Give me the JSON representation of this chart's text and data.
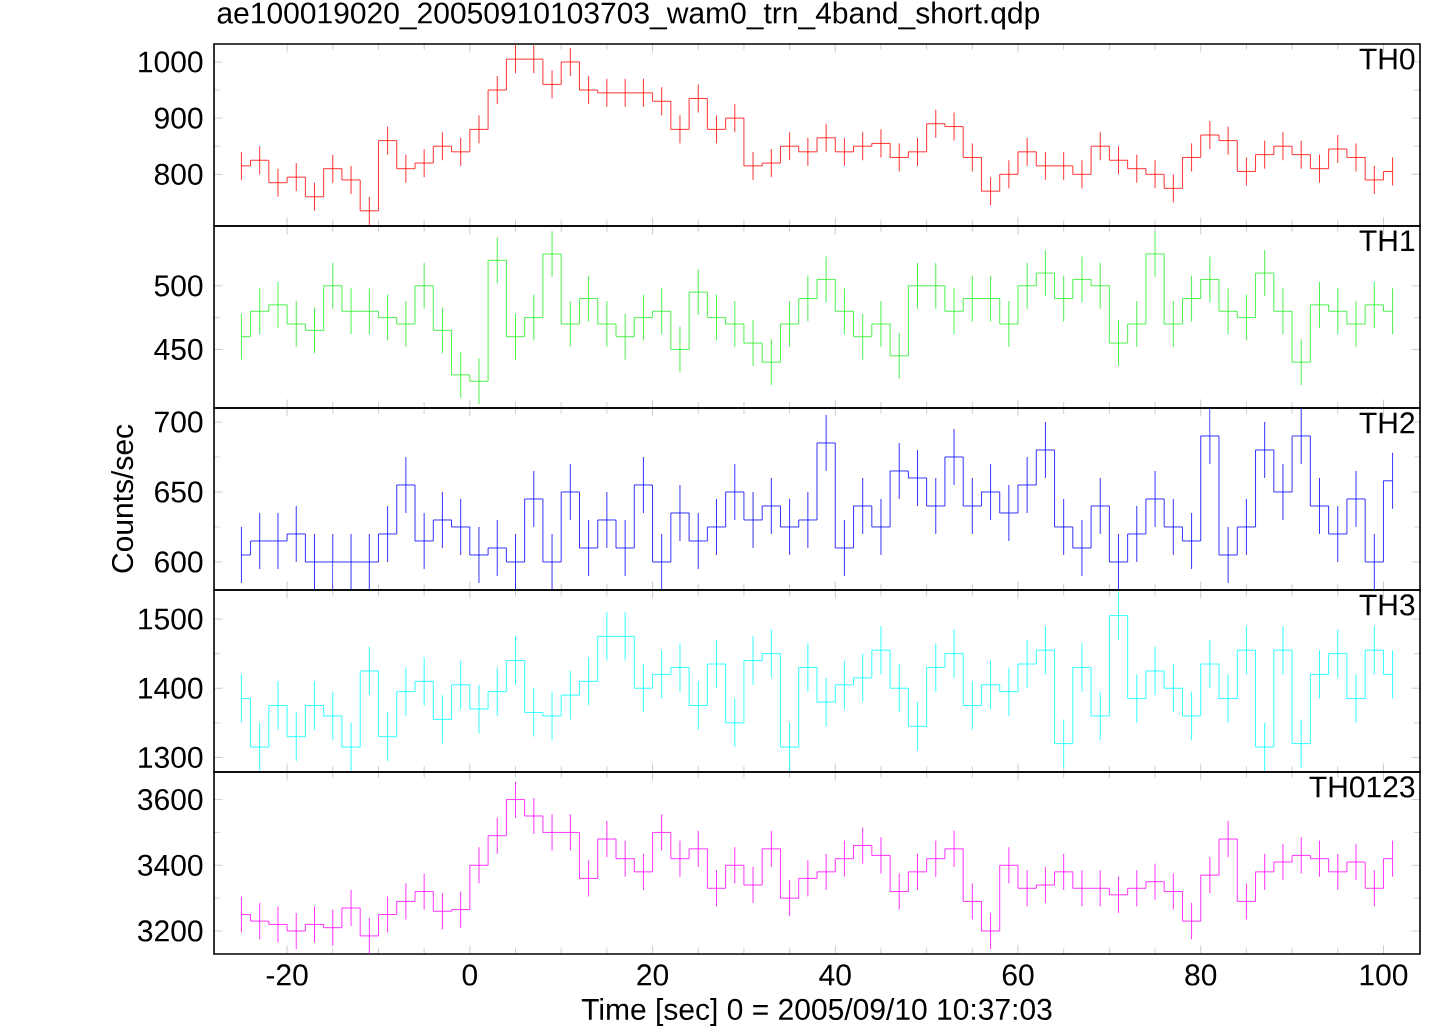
{
  "chart_data": [
    {
      "type": "step",
      "title": "ae100019020_20050910103703_wam0_trn_4band_short.qdp",
      "tick_labels": "y",
      "x": [
        -25,
        -23,
        -21,
        -19,
        -17,
        -15,
        -13,
        -11,
        -9,
        -7,
        -5,
        -3,
        -1,
        1,
        3,
        5,
        7,
        9,
        11,
        13,
        15,
        17,
        19,
        21,
        23,
        25,
        27,
        29,
        31,
        33,
        35,
        37,
        39,
        41,
        43,
        45,
        47,
        49,
        51,
        53,
        55,
        57,
        59,
        61,
        63,
        65,
        67,
        69,
        71,
        73,
        75,
        77,
        79,
        81,
        83,
        85,
        87,
        89,
        91,
        93,
        95,
        97,
        99,
        101
      ],
      "xlim": [
        -28,
        104
      ],
      "xticks": [
        -20,
        0,
        20,
        40,
        60,
        80,
        100
      ],
      "ylim": [
        708,
        1032
      ],
      "yticks": [
        800,
        900,
        1000
      ],
      "series": [
        {
          "name": "TH0",
          "color": "#ff0000",
          "values": [
            815,
            825,
            785,
            795,
            760,
            810,
            790,
            735,
            860,
            810,
            820,
            850,
            840,
            880,
            950,
            1005,
            1005,
            960,
            1000,
            950,
            945,
            945,
            945,
            930,
            880,
            935,
            880,
            900,
            815,
            820,
            850,
            840,
            865,
            840,
            850,
            855,
            830,
            840,
            890,
            885,
            830,
            770,
            800,
            840,
            815,
            815,
            800,
            850,
            825,
            810,
            800,
            775,
            830,
            870,
            860,
            805,
            835,
            850,
            835,
            810,
            845,
            830,
            790,
            805
          ],
          "errors": [
            25,
            25,
            25,
            25,
            25,
            25,
            25,
            25,
            25,
            25,
            25,
            25,
            25,
            25,
            25,
            25,
            25,
            25,
            25,
            25,
            25,
            25,
            25,
            25,
            25,
            25,
            25,
            25,
            25,
            25,
            25,
            25,
            25,
            25,
            25,
            25,
            25,
            25,
            25,
            25,
            25,
            25,
            25,
            25,
            25,
            25,
            25,
            25,
            25,
            25,
            25,
            25,
            25,
            25,
            25,
            25,
            25,
            25,
            25,
            25,
            25,
            25,
            25,
            25
          ]
        }
      ]
    },
    {
      "type": "step",
      "tick_labels": "y",
      "x": [
        -25,
        -23,
        -21,
        -19,
        -17,
        -15,
        -13,
        -11,
        -9,
        -7,
        -5,
        -3,
        -1,
        1,
        3,
        5,
        7,
        9,
        11,
        13,
        15,
        17,
        19,
        21,
        23,
        25,
        27,
        29,
        31,
        33,
        35,
        37,
        39,
        41,
        43,
        45,
        47,
        49,
        51,
        53,
        55,
        57,
        59,
        61,
        63,
        65,
        67,
        69,
        71,
        73,
        75,
        77,
        79,
        81,
        83,
        85,
        87,
        89,
        91,
        93,
        95,
        97,
        99,
        101
      ],
      "xlim": [
        -28,
        104
      ],
      "xticks": [
        -20,
        0,
        20,
        40,
        60,
        80,
        100
      ],
      "ylim": [
        404,
        547
      ],
      "yticks": [
        450,
        500
      ],
      "series": [
        {
          "name": "TH1",
          "color": "#22ee22",
          "values": [
            460,
            480,
            485,
            470,
            465,
            500,
            480,
            480,
            475,
            470,
            500,
            465,
            430,
            425,
            520,
            460,
            475,
            525,
            470,
            490,
            470,
            460,
            475,
            480,
            450,
            495,
            475,
            470,
            455,
            440,
            470,
            490,
            505,
            480,
            460,
            470,
            445,
            500,
            500,
            480,
            490,
            490,
            470,
            500,
            510,
            490,
            505,
            500,
            455,
            470,
            525,
            470,
            490,
            505,
            480,
            475,
            510,
            480,
            440,
            485,
            480,
            470,
            485,
            480
          ],
          "errors": [
            18,
            18,
            18,
            18,
            18,
            18,
            18,
            18,
            18,
            18,
            18,
            18,
            18,
            18,
            18,
            18,
            18,
            18,
            18,
            18,
            18,
            18,
            18,
            18,
            18,
            18,
            18,
            18,
            18,
            18,
            18,
            18,
            18,
            18,
            18,
            18,
            18,
            18,
            18,
            18,
            18,
            18,
            18,
            18,
            18,
            18,
            18,
            18,
            18,
            18,
            18,
            18,
            18,
            18,
            18,
            18,
            18,
            18,
            18,
            18,
            18,
            18,
            18,
            18
          ]
        }
      ]
    },
    {
      "type": "step",
      "ylabel": "Counts/sec",
      "tick_labels": "y",
      "x": [
        -25,
        -23,
        -21,
        -19,
        -17,
        -15,
        -13,
        -11,
        -9,
        -7,
        -5,
        -3,
        -1,
        1,
        3,
        5,
        7,
        9,
        11,
        13,
        15,
        17,
        19,
        21,
        23,
        25,
        27,
        29,
        31,
        33,
        35,
        37,
        39,
        41,
        43,
        45,
        47,
        49,
        51,
        53,
        55,
        57,
        59,
        61,
        63,
        65,
        67,
        69,
        71,
        73,
        75,
        77,
        79,
        81,
        83,
        85,
        87,
        89,
        91,
        93,
        95,
        97,
        99,
        101
      ],
      "xlim": [
        -28,
        104
      ],
      "xticks": [
        -20,
        0,
        20,
        40,
        60,
        80,
        100
      ],
      "ylim": [
        580,
        710
      ],
      "yticks": [
        600,
        650,
        700
      ],
      "series": [
        {
          "name": "TH2",
          "color": "#0000ff",
          "values": [
            605,
            615,
            615,
            620,
            600,
            600,
            600,
            600,
            620,
            655,
            615,
            630,
            625,
            605,
            610,
            600,
            645,
            600,
            650,
            610,
            630,
            610,
            655,
            600,
            635,
            615,
            625,
            650,
            630,
            640,
            625,
            630,
            685,
            610,
            640,
            625,
            665,
            660,
            640,
            675,
            640,
            650,
            635,
            655,
            680,
            625,
            610,
            640,
            600,
            620,
            645,
            625,
            615,
            690,
            605,
            625,
            680,
            650,
            690,
            640,
            620,
            645,
            600,
            658
          ],
          "errors": [
            20,
            20,
            20,
            20,
            20,
            20,
            20,
            20,
            20,
            20,
            20,
            20,
            20,
            20,
            20,
            20,
            20,
            20,
            20,
            20,
            20,
            20,
            20,
            20,
            20,
            20,
            20,
            20,
            20,
            20,
            20,
            20,
            20,
            20,
            20,
            20,
            20,
            20,
            20,
            20,
            20,
            20,
            20,
            20,
            20,
            20,
            20,
            20,
            20,
            20,
            20,
            20,
            20,
            20,
            20,
            20,
            20,
            20,
            20,
            20,
            20,
            20,
            20,
            20
          ]
        }
      ]
    },
    {
      "type": "step",
      "tick_labels": "y",
      "x": [
        -25,
        -23,
        -21,
        -19,
        -17,
        -15,
        -13,
        -11,
        -9,
        -7,
        -5,
        -3,
        -1,
        1,
        3,
        5,
        7,
        9,
        11,
        13,
        15,
        17,
        19,
        21,
        23,
        25,
        27,
        29,
        31,
        33,
        35,
        37,
        39,
        41,
        43,
        45,
        47,
        49,
        51,
        53,
        55,
        57,
        59,
        61,
        63,
        65,
        67,
        69,
        71,
        73,
        75,
        77,
        79,
        81,
        83,
        85,
        87,
        89,
        91,
        93,
        95,
        97,
        99,
        101
      ],
      "xlim": [
        -28,
        104
      ],
      "xticks": [
        -20,
        0,
        20,
        40,
        60,
        80,
        100
      ],
      "ylim": [
        1279,
        1542
      ],
      "yticks": [
        1300,
        1400,
        1500
      ],
      "series": [
        {
          "name": "TH3",
          "color": "#00ffff",
          "values": [
            1385,
            1315,
            1375,
            1330,
            1375,
            1360,
            1315,
            1425,
            1330,
            1395,
            1410,
            1355,
            1405,
            1370,
            1395,
            1440,
            1365,
            1360,
            1390,
            1410,
            1475,
            1475,
            1400,
            1420,
            1430,
            1375,
            1435,
            1350,
            1440,
            1450,
            1315,
            1430,
            1380,
            1405,
            1415,
            1455,
            1400,
            1345,
            1430,
            1450,
            1375,
            1405,
            1395,
            1435,
            1455,
            1320,
            1430,
            1360,
            1505,
            1385,
            1425,
            1400,
            1360,
            1435,
            1385,
            1455,
            1315,
            1455,
            1320,
            1420,
            1450,
            1385,
            1455,
            1420
          ],
          "errors": [
            35,
            35,
            35,
            35,
            35,
            35,
            35,
            35,
            35,
            35,
            35,
            35,
            35,
            35,
            35,
            35,
            35,
            35,
            35,
            35,
            35,
            35,
            35,
            35,
            35,
            35,
            35,
            35,
            35,
            35,
            35,
            35,
            35,
            35,
            35,
            35,
            35,
            35,
            35,
            35,
            35,
            35,
            35,
            35,
            35,
            35,
            35,
            35,
            35,
            35,
            35,
            35,
            35,
            35,
            35,
            35,
            35,
            35,
            35,
            35,
            35,
            35,
            35,
            35
          ]
        }
      ]
    },
    {
      "type": "step",
      "xlabel": "Time [sec] 0 = 2005/09/10 10:37:03",
      "x": [
        -25,
        -23,
        -21,
        -19,
        -17,
        -15,
        -13,
        -11,
        -9,
        -7,
        -5,
        -3,
        -1,
        1,
        3,
        5,
        7,
        9,
        11,
        13,
        15,
        17,
        19,
        21,
        23,
        25,
        27,
        29,
        31,
        33,
        35,
        37,
        39,
        41,
        43,
        45,
        47,
        49,
        51,
        53,
        55,
        57,
        59,
        61,
        63,
        65,
        67,
        69,
        71,
        73,
        75,
        77,
        79,
        81,
        83,
        85,
        87,
        89,
        91,
        93,
        95,
        97,
        99,
        101
      ],
      "xlim": [
        -28,
        104
      ],
      "xticks": [
        -20,
        0,
        20,
        40,
        60,
        80,
        100
      ],
      "ylim": [
        3130,
        3684
      ],
      "yticks": [
        3200,
        3400,
        3600
      ],
      "series": [
        {
          "name": "TH0123",
          "color": "#ff00ff",
          "values": [
            3250,
            3230,
            3220,
            3200,
            3220,
            3210,
            3270,
            3185,
            3250,
            3290,
            3320,
            3260,
            3265,
            3400,
            3490,
            3600,
            3550,
            3500,
            3500,
            3360,
            3480,
            3420,
            3380,
            3500,
            3420,
            3450,
            3330,
            3400,
            3340,
            3450,
            3300,
            3360,
            3380,
            3420,
            3460,
            3430,
            3320,
            3380,
            3420,
            3450,
            3290,
            3200,
            3400,
            3330,
            3340,
            3380,
            3330,
            3330,
            3310,
            3330,
            3350,
            3320,
            3230,
            3370,
            3480,
            3290,
            3380,
            3410,
            3430,
            3420,
            3380,
            3410,
            3330,
            3420
          ],
          "errors": [
            55,
            55,
            55,
            55,
            55,
            55,
            55,
            55,
            55,
            55,
            55,
            55,
            55,
            55,
            55,
            55,
            55,
            55,
            55,
            55,
            55,
            55,
            55,
            55,
            55,
            55,
            55,
            55,
            55,
            55,
            55,
            55,
            55,
            55,
            55,
            55,
            55,
            55,
            55,
            55,
            55,
            55,
            55,
            55,
            55,
            55,
            55,
            55,
            55,
            55,
            55,
            55,
            55,
            55,
            55,
            55,
            55,
            55,
            55,
            55,
            55,
            55,
            55,
            55
          ]
        }
      ]
    }
  ]
}
